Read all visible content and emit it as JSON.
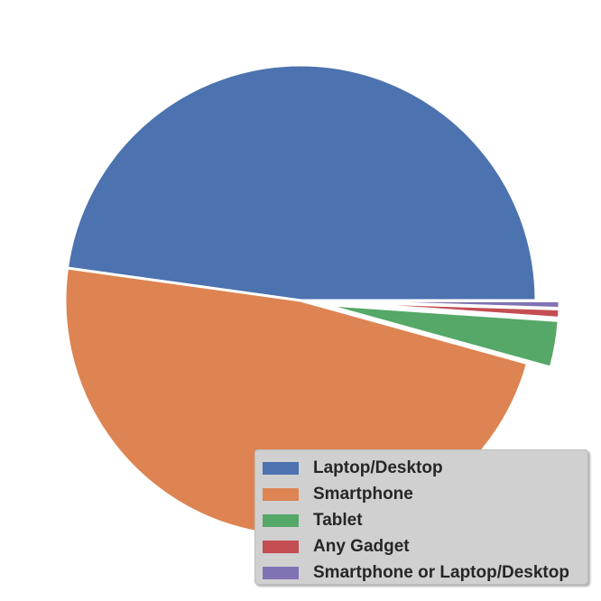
{
  "chart_data": {
    "type": "pie",
    "title": "",
    "labels": [
      "Laptop/Desktop",
      "Smartphone",
      "Tablet",
      "Any Gadget",
      "Smartphone or Laptop/Desktop"
    ],
    "values": [
      47.8,
      47.9,
      3.2,
      0.6,
      0.5
    ],
    "colors": [
      "#4c72b0",
      "#dd8452",
      "#55a868",
      "#c44e52",
      "#8172b3"
    ],
    "exploded": [
      false,
      false,
      true,
      true,
      true
    ],
    "start_angle_deg": 0,
    "direction": "counterclockwise",
    "legend_position": "lower-right"
  }
}
